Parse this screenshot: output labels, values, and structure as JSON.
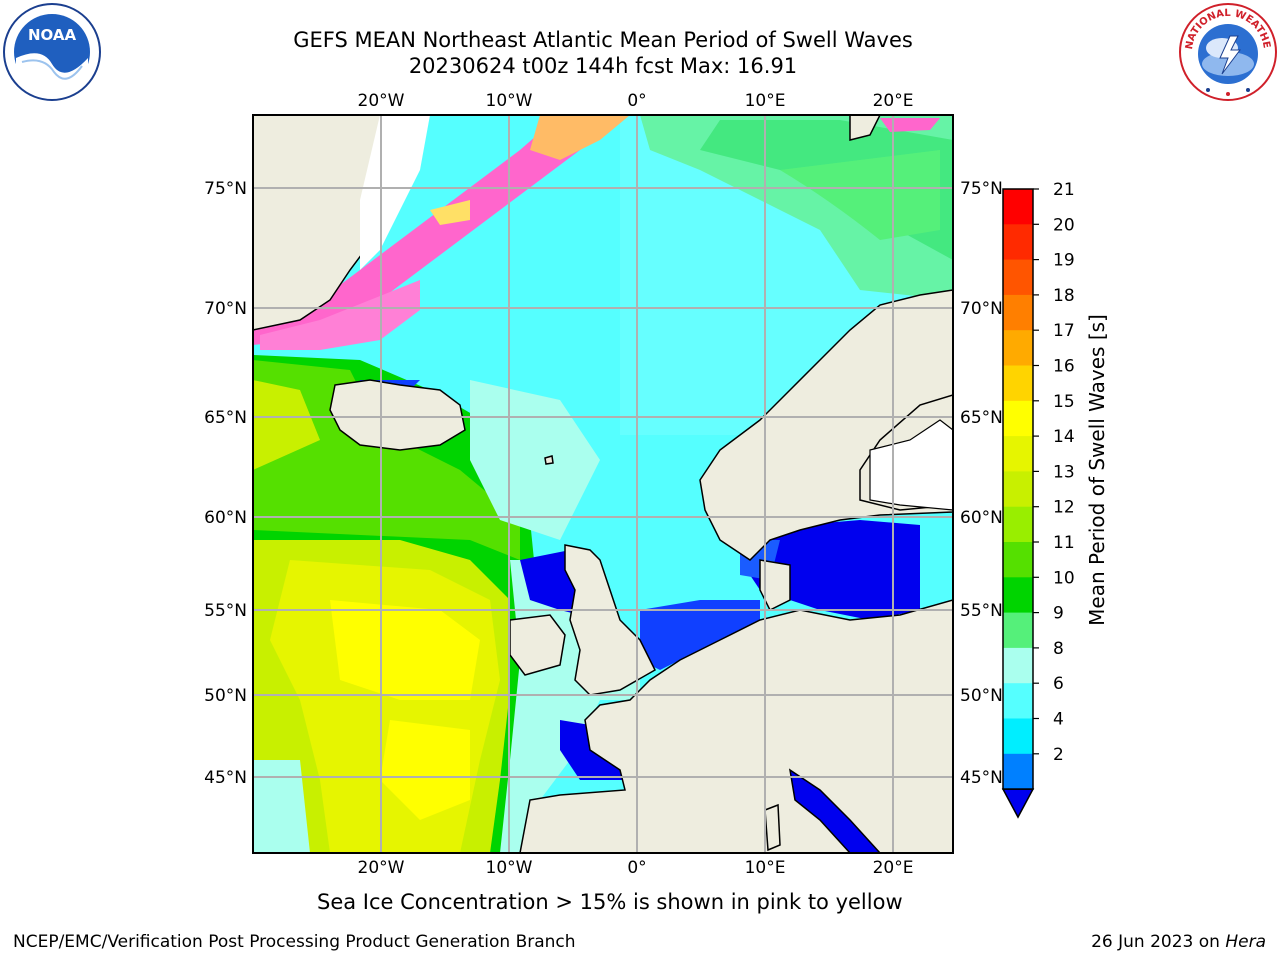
{
  "title": {
    "line1": "GEFS MEAN Northeast Atlantic Mean Period of Swell Waves",
    "line2": "20230624 t00z 144h fcst   Max: 16.91"
  },
  "map": {
    "lon_labels": [
      "20°W",
      "10°W",
      "0°",
      "10°E",
      "20°E"
    ],
    "lat_labels": [
      "75°N",
      "70°N",
      "65°N",
      "60°N",
      "55°N",
      "50°N",
      "45°N"
    ],
    "land_color": "#eeeddf",
    "grid_color": "#b0b0b0"
  },
  "colorbar": {
    "title": "Mean Period of Swell Waves [s]",
    "ticks": [
      "21",
      "20",
      "19",
      "18",
      "17",
      "16",
      "15",
      "14",
      "13",
      "12",
      "11",
      "10",
      "9",
      "8",
      "6",
      "4",
      "2"
    ],
    "colors": [
      "#ff0000",
      "#ff2a00",
      "#ff5500",
      "#ff7f00",
      "#ffaa00",
      "#ffd400",
      "#ffff00",
      "#e6f500",
      "#c8f000",
      "#99ee00",
      "#55e000",
      "#00d400",
      "#55f07a",
      "#aaffee",
      "#55ffff",
      "#00eeff",
      "#0080ff"
    ]
  },
  "caption": "Sea Ice Concentration > 15% is shown in pink to yellow",
  "footer": {
    "left": "NCEP/EMC/Verification Post Processing Product Generation Branch",
    "right_date": "26 Jun 2023 on ",
    "right_host": "Hera"
  },
  "logos": {
    "noaa_text": "NOAA",
    "nws_text": "NATIONAL WEATHER SERVICE"
  }
}
